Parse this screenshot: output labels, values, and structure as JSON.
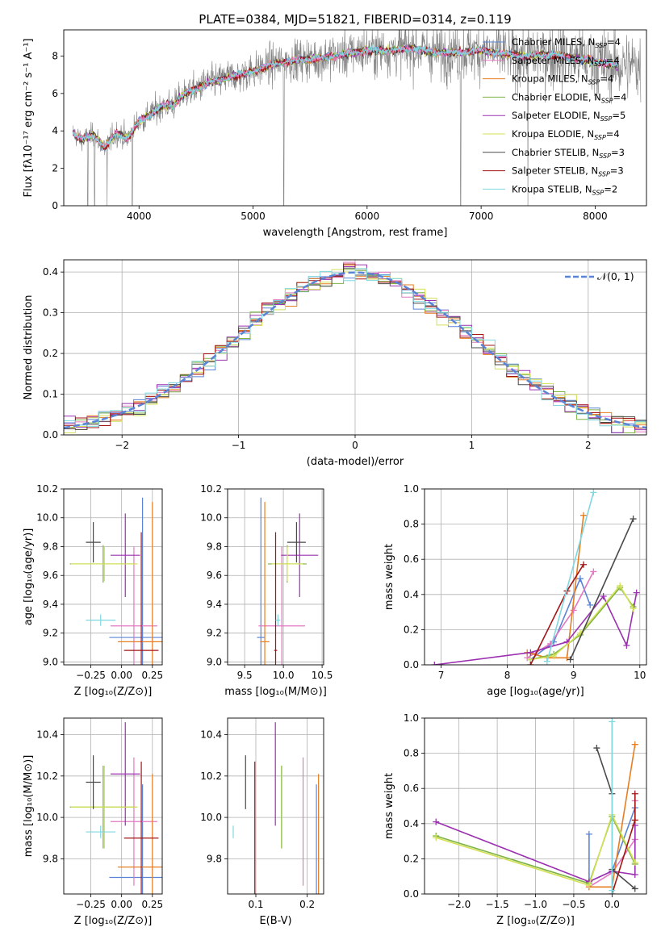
{
  "figure_title": "PLATE=0384, MJD=51821, FIBERID=0314, z=0.119",
  "colors": {
    "Chabrier MILES": "#5b84d6",
    "Salpeter MILES": "#e377c2",
    "Kroupa MILES": "#e67e22",
    "Chabrier ELODIE": "#7cb342",
    "Salpeter ELODIE": "#9b30b0",
    "Kroupa ELODIE": "#d4e157",
    "Chabrier STELIB": "#4a4a4a",
    "Salpeter STELIB": "#a31515",
    "Kroupa STELIB": "#7fd8e0",
    "data": "#808080",
    "grid": "#b0b0b0"
  },
  "chart_data": [
    {
      "id": "spectrum",
      "type": "line",
      "title": "PLATE=0384, MJD=51821, FIBERID=0314, z=0.119",
      "xlabel": "wavelength [Angstrom, rest frame]",
      "ylabel": "Flux [fλ10⁻¹⁷ erg cm⁻² s⁻¹ A⁻¹]",
      "xlim": [
        3340,
        8450
      ],
      "ylim": [
        0,
        9.4
      ],
      "xticks": [
        4000,
        5000,
        6000,
        7000,
        8000
      ],
      "yticks": [
        0,
        2,
        4,
        6,
        8
      ],
      "grid": false,
      "legend": [
        {
          "name": "Chabrier MILES",
          "label": "Chabrier MILES, N",
          "sub": "SSP",
          "tail": "=4"
        },
        {
          "name": "Salpeter MILES",
          "label": "Salpeter MILES, N",
          "sub": "SSP",
          "tail": "=4"
        },
        {
          "name": "Kroupa MILES",
          "label": "Kroupa MILES, N",
          "sub": "SSP",
          "tail": "=4"
        },
        {
          "name": "Chabrier ELODIE",
          "label": "Chabrier ELODIE, N",
          "sub": "SSP",
          "tail": "=4"
        },
        {
          "name": "Salpeter ELODIE",
          "label": "Salpeter ELODIE, N",
          "sub": "SSP",
          "tail": "=5"
        },
        {
          "name": "Kroupa ELODIE",
          "label": "Kroupa ELODIE, N",
          "sub": "SSP",
          "tail": "=4"
        },
        {
          "name": "Chabrier STELIB",
          "label": "Chabrier STELIB, N",
          "sub": "SSP",
          "tail": "=3"
        },
        {
          "name": "Salpeter STELIB",
          "label": "Salpeter STELIB, N",
          "sub": "SSP",
          "tail": "=3"
        },
        {
          "name": "Kroupa STELIB",
          "label": "Kroupa STELIB, N",
          "sub": "SSP",
          "tail": "=2"
        }
      ],
      "continuum": [
        [
          3420,
          3.9
        ],
        [
          3500,
          3.5
        ],
        [
          3600,
          3.8
        ],
        [
          3700,
          3.1
        ],
        [
          3800,
          3.9
        ],
        [
          3900,
          3.6
        ],
        [
          4000,
          4.5
        ],
        [
          4100,
          4.9
        ],
        [
          4200,
          5.3
        ],
        [
          4300,
          5.4
        ],
        [
          4400,
          6.0
        ],
        [
          4500,
          6.2
        ],
        [
          4600,
          6.6
        ],
        [
          4700,
          6.7
        ],
        [
          4800,
          6.9
        ],
        [
          4900,
          7.0
        ],
        [
          5000,
          7.2
        ],
        [
          5200,
          7.6
        ],
        [
          5400,
          7.8
        ],
        [
          5600,
          7.9
        ],
        [
          5800,
          8.1
        ],
        [
          6000,
          8.3
        ],
        [
          6200,
          8.3
        ],
        [
          6400,
          8.4
        ],
        [
          6600,
          8.2
        ],
        [
          6800,
          8.2
        ],
        [
          7000,
          8.3
        ],
        [
          7200,
          8.1
        ],
        [
          7400,
          8.0
        ],
        [
          7600,
          8.1
        ],
        [
          7800,
          7.9
        ],
        [
          8000,
          7.7
        ],
        [
          8200,
          7.5
        ]
      ],
      "model_range": [
        3420,
        8200
      ],
      "data_range": [
        3420,
        8400
      ],
      "dropouts": [
        3550,
        3610,
        3720,
        3940,
        5270,
        6820,
        7410
      ]
    },
    {
      "id": "residuals",
      "type": "histogram",
      "xlabel": "(data-model)/error",
      "ylabel": "Normed distribution",
      "xlim": [
        -2.5,
        2.5
      ],
      "ylim": [
        0,
        0.43
      ],
      "xticks": [
        -2,
        -1,
        0,
        1,
        2
      ],
      "yticks": [
        0.0,
        0.1,
        0.2,
        0.3,
        0.4
      ],
      "grid": true,
      "legend_label": "𝒩(0, 1)",
      "bin_width": 0.1,
      "bin_start": -2.5
    },
    {
      "id": "age_vs_Z",
      "type": "errorbar",
      "xlabel": "Z [log₁₀(Z/Z⊙)]",
      "ylabel": "age  [log₁₀(age/yr)]",
      "xlim": [
        -0.47,
        0.33
      ],
      "ylim": [
        8.98,
        10.2
      ],
      "xticks": [
        -0.25,
        0.0,
        0.25
      ],
      "xticklabels": [
        "−0.25",
        "0.00",
        "0.25"
      ],
      "yticks": [
        9.0,
        9.2,
        9.4,
        9.6,
        9.8,
        10.0,
        10.2
      ],
      "grid": true,
      "points": [
        {
          "name": "Chabrier MILES",
          "x": 0.17,
          "xerr": 0.27,
          "y": 9.17,
          "yerr": 0.97
        },
        {
          "name": "Salpeter MILES",
          "x": 0.1,
          "xerr": 0.19,
          "y": 9.25,
          "yerr": 0.55
        },
        {
          "name": "Kroupa MILES",
          "x": 0.25,
          "xerr": 0.28,
          "y": 9.14,
          "yerr": 0.97
        },
        {
          "name": "Chabrier ELODIE",
          "x": -0.15,
          "xerr": 0.27,
          "y": 9.68,
          "yerr": 0.13
        },
        {
          "name": "Salpeter ELODIE",
          "x": 0.03,
          "xerr": 0.12,
          "y": 9.74,
          "yerr": 0.29
        },
        {
          "name": "Kroupa ELODIE",
          "x": -0.14,
          "xerr": 0.27,
          "y": 9.68,
          "yerr": 0.12
        },
        {
          "name": "Chabrier STELIB",
          "x": -0.23,
          "xerr": 0.06,
          "y": 9.83,
          "yerr": 0.14
        },
        {
          "name": "Salpeter STELIB",
          "x": 0.16,
          "xerr": 0.14,
          "y": 9.08,
          "yerr": 0.82
        },
        {
          "name": "Kroupa STELIB",
          "x": -0.17,
          "xerr": 0.12,
          "y": 9.29,
          "yerr": 0.04
        }
      ]
    },
    {
      "id": "age_vs_mass",
      "type": "errorbar",
      "xlabel": "mass [log₁₀(M/M⊙)]",
      "xlim": [
        9.28,
        10.52
      ],
      "ylim": [
        8.98,
        10.2
      ],
      "xticks": [
        9.5,
        10.0,
        10.5
      ],
      "xticklabels": [
        "9.5",
        "10.0",
        "10.5"
      ],
      "yticks": [
        9.0,
        9.2,
        9.4,
        9.6,
        9.8,
        10.0,
        10.2
      ],
      "grid": true,
      "points": [
        {
          "name": "Chabrier MILES",
          "x": 9.71,
          "xerr": 0.05,
          "y": 9.17,
          "yerr": 0.97
        },
        {
          "name": "Salpeter MILES",
          "x": 9.98,
          "xerr": 0.3,
          "y": 9.25,
          "yerr": 0.55
        },
        {
          "name": "Kroupa MILES",
          "x": 9.76,
          "xerr": 0.06,
          "y": 9.14,
          "yerr": 0.97
        },
        {
          "name": "Chabrier ELODIE",
          "x": 10.05,
          "xerr": 0.25,
          "y": 9.68,
          "yerr": 0.13
        },
        {
          "name": "Salpeter ELODIE",
          "x": 10.21,
          "xerr": 0.24,
          "y": 9.74,
          "yerr": 0.29
        },
        {
          "name": "Kroupa ELODIE",
          "x": 10.05,
          "xerr": 0.2,
          "y": 9.68,
          "yerr": 0.12
        },
        {
          "name": "Chabrier STELIB",
          "x": 10.17,
          "xerr": 0.12,
          "y": 9.83,
          "yerr": 0.14
        },
        {
          "name": "Salpeter STELIB",
          "x": 9.9,
          "xerr": 0.02,
          "y": 9.08,
          "yerr": 0.82
        },
        {
          "name": "Kroupa STELIB",
          "x": 9.93,
          "xerr": 0.03,
          "y": 9.29,
          "yerr": 0.04
        }
      ]
    },
    {
      "id": "weight_vs_age",
      "type": "line",
      "xlabel": "age  [log₁₀(age/yr)]",
      "ylabel": "mass weight",
      "xlim": [
        6.75,
        10.1
      ],
      "ylim": [
        0,
        1.0
      ],
      "xticks": [
        7,
        8,
        9,
        10
      ],
      "yticks": [
        0.0,
        0.2,
        0.4,
        0.6,
        0.8,
        1.0
      ],
      "grid": true,
      "series": [
        {
          "name": "Chabrier MILES",
          "x": [
            8.35,
            8.7,
            9.1,
            9.25
          ],
          "y": [
            0.03,
            0.13,
            0.49,
            0.34
          ]
        },
        {
          "name": "Salpeter MILES",
          "x": [
            8.3,
            8.65,
            9.0,
            9.3
          ],
          "y": [
            0.04,
            0.12,
            0.31,
            0.53
          ]
        },
        {
          "name": "Kroupa MILES",
          "x": [
            8.3,
            8.6,
            8.9,
            9.15
          ],
          "y": [
            0.07,
            0.04,
            0.04,
            0.85
          ]
        },
        {
          "name": "Chabrier ELODIE",
          "x": [
            8.35,
            8.7,
            9.1,
            9.7,
            9.9
          ],
          "y": [
            0.03,
            0.06,
            0.17,
            0.44,
            0.33
          ]
        },
        {
          "name": "Salpeter ELODIE",
          "x": [
            6.9,
            8.35,
            8.9,
            9.45,
            9.8,
            9.95
          ],
          "y": [
            0.0,
            0.07,
            0.13,
            0.39,
            0.11,
            0.41
          ]
        },
        {
          "name": "Kroupa ELODIE",
          "x": [
            8.35,
            8.7,
            9.1,
            9.7,
            9.9
          ],
          "y": [
            0.03,
            0.05,
            0.18,
            0.45,
            0.32
          ]
        },
        {
          "name": "Chabrier STELIB",
          "x": [
            8.95,
            9.9
          ],
          "y": [
            0.03,
            0.83
          ]
        },
        {
          "name": "Salpeter STELIB",
          "x": [
            8.35,
            8.9,
            9.15
          ],
          "y": [
            0.0,
            0.42,
            0.57
          ]
        },
        {
          "name": "Kroupa STELIB",
          "x": [
            8.6,
            9.3
          ],
          "y": [
            0.02,
            0.98
          ]
        }
      ]
    },
    {
      "id": "mass_vs_Z",
      "type": "errorbar",
      "xlabel": "Z [log₁₀(Z/Z⊙)]",
      "ylabel": "mass [log₁₀(M/M⊙)]",
      "xlim": [
        -0.47,
        0.33
      ],
      "ylim": [
        9.63,
        10.48
      ],
      "xticks": [
        -0.25,
        0.0,
        0.25
      ],
      "xticklabels": [
        "−0.25",
        "0.00",
        "0.25"
      ],
      "yticks": [
        9.8,
        10.0,
        10.2,
        10.4
      ],
      "grid": true,
      "points": [
        {
          "name": "Chabrier MILES",
          "x": 0.17,
          "xerr": 0.27,
          "y": 9.71,
          "yerr": 0.45
        },
        {
          "name": "Salpeter MILES",
          "x": 0.1,
          "xerr": 0.19,
          "y": 9.98,
          "yerr": 0.31
        },
        {
          "name": "Kroupa MILES",
          "x": 0.25,
          "xerr": 0.28,
          "y": 9.76,
          "yerr": 0.45
        },
        {
          "name": "Chabrier ELODIE",
          "x": -0.15,
          "xerr": 0.27,
          "y": 10.05,
          "yerr": 0.2
        },
        {
          "name": "Salpeter ELODIE",
          "x": 0.03,
          "xerr": 0.12,
          "y": 10.21,
          "yerr": 0.25
        },
        {
          "name": "Kroupa ELODIE",
          "x": -0.14,
          "xerr": 0.27,
          "y": 10.05,
          "yerr": 0.2
        },
        {
          "name": "Chabrier STELIB",
          "x": -0.23,
          "xerr": 0.06,
          "y": 10.17,
          "yerr": 0.13
        },
        {
          "name": "Salpeter STELIB",
          "x": 0.16,
          "xerr": 0.14,
          "y": 9.9,
          "yerr": 0.37
        },
        {
          "name": "Kroupa STELIB",
          "x": -0.17,
          "xerr": 0.12,
          "y": 9.93,
          "yerr": 0.03
        }
      ]
    },
    {
      "id": "mass_vs_EBV",
      "type": "errorbar",
      "xlabel": "E(B-V)",
      "xlim": [
        0.045,
        0.232
      ],
      "ylim": [
        9.63,
        10.48
      ],
      "xticks": [
        0.1,
        0.2
      ],
      "xticklabels": [
        "0.1",
        "0.2"
      ],
      "yticks": [
        9.8,
        10.0,
        10.2,
        10.4
      ],
      "grid": true,
      "points": [
        {
          "name": "Chabrier MILES",
          "x": 0.218,
          "y": 9.71,
          "yerr": 0.45
        },
        {
          "name": "Salpeter MILES",
          "x": 0.192,
          "y": 9.98,
          "yerr": 0.31
        },
        {
          "name": "Kroupa MILES",
          "x": 0.222,
          "y": 9.76,
          "yerr": 0.45
        },
        {
          "name": "Chabrier ELODIE",
          "x": 0.15,
          "y": 10.05,
          "yerr": 0.2
        },
        {
          "name": "Salpeter ELODIE",
          "x": 0.138,
          "y": 10.21,
          "yerr": 0.25
        },
        {
          "name": "Kroupa ELODIE",
          "x": 0.151,
          "y": 10.05,
          "yerr": 0.2
        },
        {
          "name": "Chabrier STELIB",
          "x": 0.08,
          "y": 10.17,
          "yerr": 0.13
        },
        {
          "name": "Salpeter STELIB",
          "x": 0.098,
          "y": 9.9,
          "yerr": 0.37
        },
        {
          "name": "Kroupa STELIB",
          "x": 0.056,
          "y": 9.93,
          "yerr": 0.03
        }
      ]
    },
    {
      "id": "weight_vs_Z",
      "type": "line",
      "xlabel": "Z [log₁₀(Z/Z⊙)]",
      "ylabel": "mass weight",
      "xlim": [
        -2.45,
        0.45
      ],
      "ylim": [
        0,
        1.0
      ],
      "xticks": [
        -2.0,
        -1.5,
        -1.0,
        -0.5,
        0.0
      ],
      "xticklabels": [
        "−2.0",
        "−1.5",
        "−1.0",
        "−0.5",
        "0.0"
      ],
      "yticks": [
        0.0,
        0.2,
        0.4,
        0.6,
        0.8,
        1.0
      ],
      "grid": true,
      "series": [
        {
          "name": "Chabrier MILES",
          "x": [
            -0.3,
            -0.3,
            0.0,
            0.3
          ],
          "y": [
            0.34,
            0.07,
            0.13,
            0.49
          ]
        },
        {
          "name": "Salpeter MILES",
          "x": [
            -0.3,
            0.0,
            0.3,
            0.3
          ],
          "y": [
            0.04,
            0.12,
            0.31,
            0.53
          ]
        },
        {
          "name": "Kroupa MILES",
          "x": [
            -0.3,
            -0.3,
            0.0,
            0.3
          ],
          "y": [
            0.07,
            0.04,
            0.04,
            0.85
          ]
        },
        {
          "name": "Chabrier ELODIE",
          "x": [
            -2.3,
            -0.3,
            0.0,
            0.3
          ],
          "y": [
            0.33,
            0.06,
            0.44,
            0.17
          ]
        },
        {
          "name": "Salpeter ELODIE",
          "x": [
            -2.3,
            -0.3,
            0.0,
            0.3,
            0.3
          ],
          "y": [
            0.41,
            0.07,
            0.13,
            0.11,
            0.39
          ]
        },
        {
          "name": "Kroupa ELODIE",
          "x": [
            -2.3,
            -0.3,
            0.0,
            0.3
          ],
          "y": [
            0.32,
            0.05,
            0.45,
            0.18
          ]
        },
        {
          "name": "Chabrier STELIB",
          "x": [
            -0.2,
            0.0,
            0.0,
            0.3
          ],
          "y": [
            0.83,
            0.57,
            0.14,
            0.03
          ]
        },
        {
          "name": "Salpeter STELIB",
          "x": [
            0.0,
            0.3,
            0.3
          ],
          "y": [
            0.0,
            0.42,
            0.57
          ]
        },
        {
          "name": "Kroupa STELIB",
          "x": [
            0.0,
            0.0
          ],
          "y": [
            0.02,
            0.98
          ]
        }
      ]
    }
  ]
}
